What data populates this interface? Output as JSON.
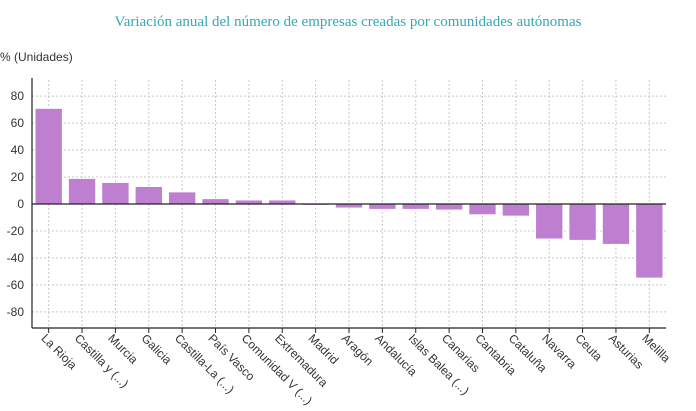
{
  "chart_data": {
    "type": "bar",
    "title": "Variación anual del número de empresas creadas por comunidades autónomas",
    "ylabel": "% (Unidades)",
    "xlabel": "",
    "categories": [
      "La Rioja",
      "Castilla y (...)",
      "Murcia",
      "Galicia",
      "Castilla-La (...)",
      "País Vasco",
      "Comunidad V (...)",
      "Extremadura",
      "Madrid",
      "Aragón",
      "Andalucía",
      "Islas Balea (...)",
      "Canarias",
      "Cantabria",
      "Cataluña",
      "Navarra",
      "Ceuta",
      "Asturias",
      "Melilla"
    ],
    "values": [
      71,
      19,
      16,
      13,
      9,
      4,
      3,
      3,
      -1,
      -3,
      -4,
      -4,
      -4.5,
      -8,
      -9,
      -26,
      -27,
      -30,
      -55
    ],
    "ylim": [
      -92,
      92
    ],
    "yticks": [
      80,
      60,
      40,
      20,
      0,
      -20,
      -40,
      -60,
      -80
    ],
    "grid": true,
    "legend": "none",
    "bar_color": "#bf7fd0",
    "bar_stroke": "#ffffff"
  }
}
